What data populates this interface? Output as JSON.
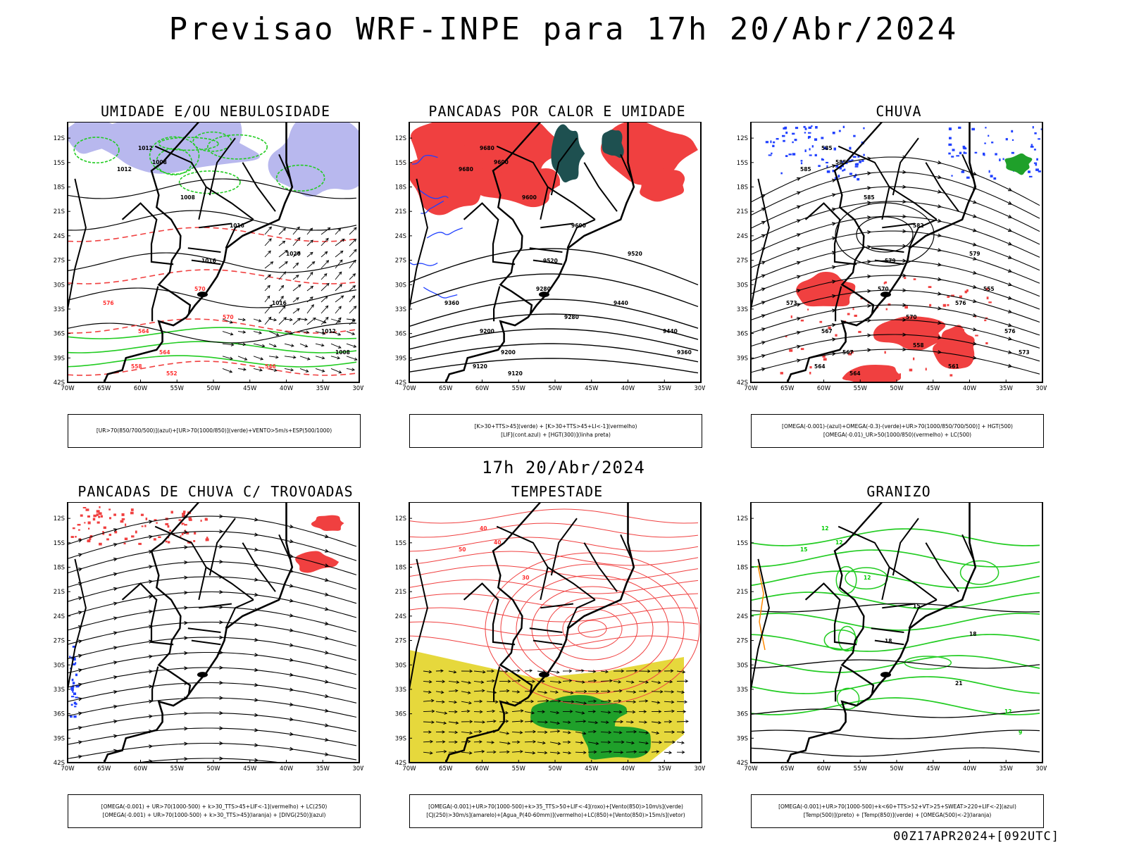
{
  "page": {
    "title": "Previsao WRF-INPE  para 17h 20/Abr/2024",
    "mid_title": "17h 20/Abr/2024",
    "run_stamp": "00Z17APR2024+[092UTC]"
  },
  "axes": {
    "lat_labels": [
      "12S",
      "15S",
      "18S",
      "21S",
      "24S",
      "27S",
      "30S",
      "33S",
      "36S",
      "39S",
      "42S"
    ],
    "lon_labels": [
      "70W",
      "65W",
      "60W",
      "55W",
      "50W",
      "45W",
      "40W",
      "35W",
      "30W"
    ]
  },
  "panels": [
    {
      "title": "UMIDADE E/OU NEBULOSIDADE",
      "legend": [
        "[UR>70(850/700/500)](azul)+[UR>70(1000/850)](verde)+VENTO>5m/s+ESP(500/1000)"
      ],
      "contour_labels": [
        {
          "text": "1012",
          "color": "#000000"
        },
        {
          "text": "1012",
          "color": "#000000"
        },
        {
          "text": "1008",
          "color": "#000000"
        },
        {
          "text": "1008",
          "color": "#000000"
        },
        {
          "text": "1016",
          "color": "#000000"
        },
        {
          "text": "1016",
          "color": "#000000"
        },
        {
          "text": "1020",
          "color": "#000000"
        },
        {
          "text": "1016",
          "color": "#000000"
        },
        {
          "text": "1012",
          "color": "#000000"
        },
        {
          "text": "1008",
          "color": "#000000"
        },
        {
          "text": "576",
          "color": "#ff3030"
        },
        {
          "text": "570",
          "color": "#ff3030"
        },
        {
          "text": "570",
          "color": "#ff3030"
        },
        {
          "text": "564",
          "color": "#ff3030"
        },
        {
          "text": "564",
          "color": "#ff3030"
        },
        {
          "text": "558",
          "color": "#ff3030"
        },
        {
          "text": "552",
          "color": "#ff3030"
        },
        {
          "text": "546",
          "color": "#ff3030"
        }
      ]
    },
    {
      "title": "PANCADAS POR CALOR E UMIDADE",
      "legend": [
        "[K>30+TTS>45](verde) + [K>30+TTS>45+LI<-1](vermelho)",
        "[LIF](cont.azul) + [HGT(300)](linha preta)"
      ],
      "contour_labels": [
        {
          "text": "9680",
          "color": "#000000"
        },
        {
          "text": "9680",
          "color": "#000000"
        },
        {
          "text": "9600",
          "color": "#000000"
        },
        {
          "text": "9600",
          "color": "#000000"
        },
        {
          "text": "9600",
          "color": "#000000"
        },
        {
          "text": "9520",
          "color": "#000000"
        },
        {
          "text": "9520",
          "color": "#000000"
        },
        {
          "text": "9440",
          "color": "#000000"
        },
        {
          "text": "9440",
          "color": "#000000"
        },
        {
          "text": "9360",
          "color": "#000000"
        },
        {
          "text": "9360",
          "color": "#000000"
        },
        {
          "text": "9280",
          "color": "#000000"
        },
        {
          "text": "9280",
          "color": "#000000"
        },
        {
          "text": "9200",
          "color": "#000000"
        },
        {
          "text": "9200",
          "color": "#000000"
        },
        {
          "text": "9120",
          "color": "#000000"
        },
        {
          "text": "9120",
          "color": "#000000"
        }
      ]
    },
    {
      "title": "CHUVA",
      "legend": [
        "[OMEGA(-0.001)-(azul)+OMEGA(-0.3)-(verde)+UR>70(1000/850/700/500)] + HGT(500)",
        "[OMEGA(-0.01)_UR>50(1000/850)(vermelho) + LC(500)"
      ],
      "contour_labels": [
        {
          "text": "585",
          "color": "#000000"
        },
        {
          "text": "585",
          "color": "#000000"
        },
        {
          "text": "585",
          "color": "#000000"
        },
        {
          "text": "585",
          "color": "#000000"
        },
        {
          "text": "582",
          "color": "#000000"
        },
        {
          "text": "579",
          "color": "#000000"
        },
        {
          "text": "579",
          "color": "#000000"
        },
        {
          "text": "576",
          "color": "#000000"
        },
        {
          "text": "576",
          "color": "#000000"
        },
        {
          "text": "573",
          "color": "#000000"
        },
        {
          "text": "573",
          "color": "#000000"
        },
        {
          "text": "570",
          "color": "#000000"
        },
        {
          "text": "570",
          "color": "#000000"
        },
        {
          "text": "567",
          "color": "#000000"
        },
        {
          "text": "567",
          "color": "#000000"
        },
        {
          "text": "564",
          "color": "#000000"
        },
        {
          "text": "564",
          "color": "#000000"
        },
        {
          "text": "561",
          "color": "#000000"
        },
        {
          "text": "558",
          "color": "#000000"
        },
        {
          "text": "555",
          "color": "#000000"
        }
      ]
    },
    {
      "title": "PANCADAS DE CHUVA C/ TROVOADAS",
      "legend": [
        "[OMEGA(-0.001) + UR>70(1000-500) + k>30_TTS>45+LIF<-1](vermelho) + LC(250)",
        "[OMEGA(-0.001) + UR>70(1000-500) + k>30_TTS>45](laranja) + [DIVG(250)](azul)"
      ],
      "contour_labels": []
    },
    {
      "title": "TEMPESTADE",
      "legend": [
        "[OMEGA(-0.001)+UR>70(1000-500)+k>35_TTS>50+LIF<-4](roxo)+[Vento(850)>10m/s](verde)",
        "[CJ(250)>30m/s](amarelo)+[Agua_P(40-60mm)](vermelho)+LC(850)+[Vento(850)>15m/s](vetor)"
      ],
      "contour_labels": [
        {
          "text": "40",
          "color": "#ff3030"
        },
        {
          "text": "50",
          "color": "#ff3030"
        },
        {
          "text": "40",
          "color": "#ff3030"
        },
        {
          "text": "30",
          "color": "#ff3030"
        }
      ]
    },
    {
      "title": "GRANIZO",
      "legend": [
        "[OMEGA(-0.001)+UR>70(1000-500)+k<60+TTS>52+VT>25+SWEAT>220+LIF<-2](azul)",
        "[Temp(500)](preto) + [Temp(850)](verde) + [OMEGA(500)<-2](laranja)"
      ],
      "contour_labels": [
        {
          "text": "12",
          "color": "#00cc00"
        },
        {
          "text": "15",
          "color": "#00cc00"
        },
        {
          "text": "12",
          "color": "#00cc00"
        },
        {
          "text": "12",
          "color": "#00cc00"
        },
        {
          "text": "15",
          "color": "#000000"
        },
        {
          "text": "18",
          "color": "#000000"
        },
        {
          "text": "18",
          "color": "#000000"
        },
        {
          "text": "21",
          "color": "#000000"
        },
        {
          "text": "12",
          "color": "#00cc00"
        },
        {
          "text": "9",
          "color": "#00cc00"
        }
      ]
    }
  ],
  "colors": {
    "frame": "#000000",
    "coast": "#000000",
    "red_area": "#f04040",
    "green_contour": "#22cc22",
    "blue": "#2040ff",
    "lavender": "#b8b8ee",
    "dark_teal": "#1e5050",
    "yellow": "#e6d83c",
    "dark_green": "#1fa02a",
    "orange": "#ff8800"
  }
}
